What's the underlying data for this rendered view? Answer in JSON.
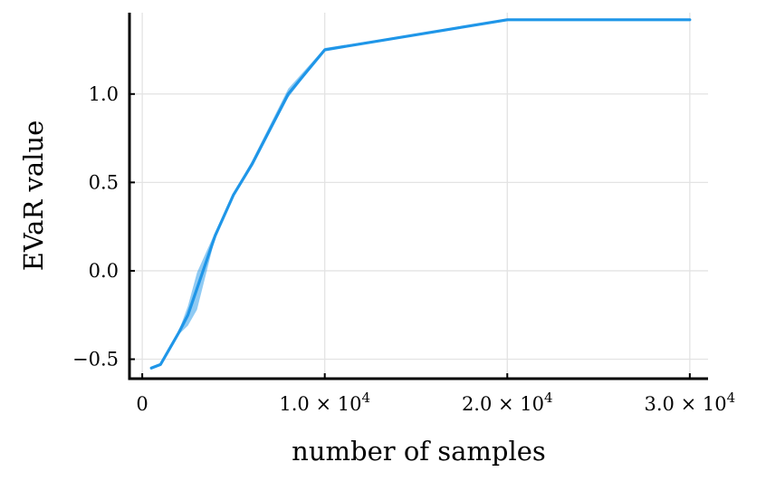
{
  "chart_data": {
    "type": "line",
    "xlabel": "number of samples",
    "ylabel": "EVaR value",
    "xlim": [
      -700,
      31000
    ],
    "ylim": [
      -0.61,
      1.46
    ],
    "grid": true,
    "legend": "none",
    "x_ticks": [
      {
        "value": 0,
        "label": "0",
        "exp": ""
      },
      {
        "value": 10000,
        "label": "1.0 × 10",
        "exp": "4"
      },
      {
        "value": 20000,
        "label": "2.0 × 10",
        "exp": "4"
      },
      {
        "value": 30000,
        "label": "3.0 × 10",
        "exp": "4"
      }
    ],
    "y_ticks": [
      {
        "value": -0.5,
        "label": "−0.5"
      },
      {
        "value": 0.0,
        "label": "0.0"
      },
      {
        "value": 0.5,
        "label": "0.5"
      },
      {
        "value": 1.0,
        "label": "1.0"
      }
    ],
    "series": [
      {
        "color": "#1f96e8",
        "x": [
          500,
          1000,
          2000,
          2500,
          3000,
          4000,
          5000,
          6000,
          8000,
          10000,
          20000,
          30000
        ],
        "values": [
          -0.55,
          -0.53,
          -0.35,
          -0.25,
          -0.1,
          0.2,
          0.43,
          0.6,
          1.0,
          1.25,
          1.42,
          1.42
        ],
        "band_lower": [
          -0.55,
          -0.53,
          -0.36,
          -0.31,
          -0.22,
          0.19,
          0.43,
          0.59,
          0.98,
          1.25,
          1.42,
          1.42
        ],
        "band_upper": [
          -0.55,
          -0.53,
          -0.34,
          -0.2,
          -0.01,
          0.22,
          0.44,
          0.62,
          1.03,
          1.26,
          1.42,
          1.42
        ]
      }
    ]
  }
}
